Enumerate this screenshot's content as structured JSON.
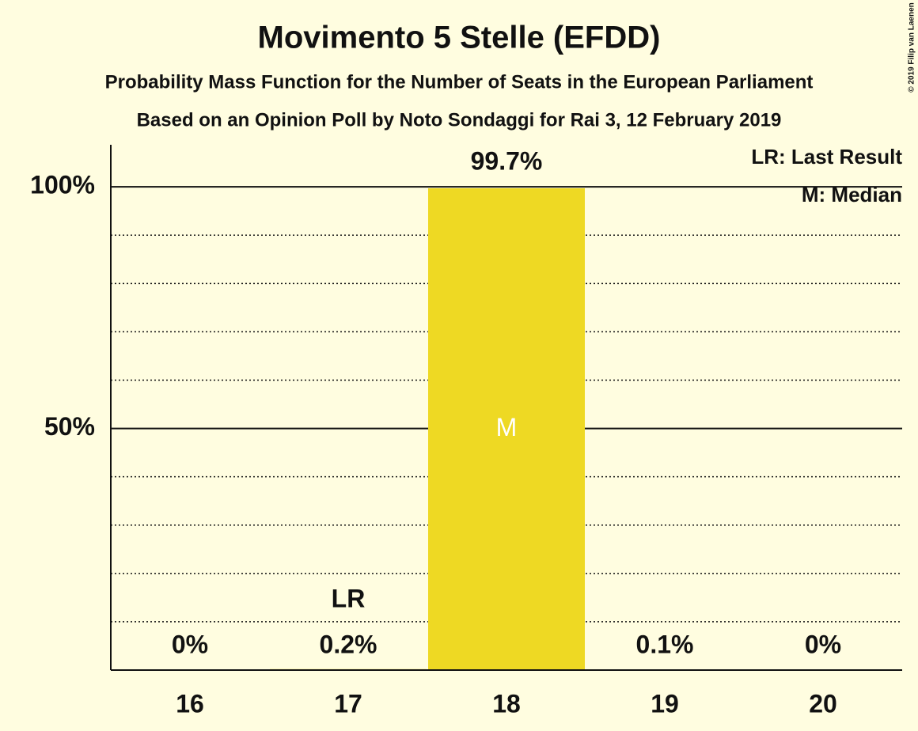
{
  "chart_data": {
    "type": "bar",
    "title": "Movimento 5 Stelle (EFDD)",
    "subtitle": "Probability Mass Function for the Number of Seats in the European Parliament",
    "subtitle2": "Based on an Opinion Poll by Noto Sondaggi for Rai 3, 12 February 2019",
    "credit": "© 2019 Filip van Laenen",
    "categories": [
      "16",
      "17",
      "18",
      "19",
      "20"
    ],
    "values": [
      0,
      0.2,
      99.7,
      0.1,
      0
    ],
    "value_labels": [
      "0%",
      "0.2%",
      "99.7%",
      "0.1%",
      "0%"
    ],
    "color": "#eed923",
    "ylim": [
      0,
      108.7
    ],
    "yticks": [
      {
        "value": 50,
        "label": "50%"
      },
      {
        "value": 100,
        "label": "100%"
      }
    ],
    "minor_yticks": [
      10,
      20,
      30,
      40,
      60,
      70,
      80,
      90
    ],
    "grid": true,
    "annotations": [
      {
        "text": "LR",
        "category": "17"
      },
      {
        "text": "M",
        "category": "18"
      }
    ],
    "legend_notes": [
      "LR: Last Result",
      "M: Median"
    ],
    "legend_position": "upper right"
  }
}
